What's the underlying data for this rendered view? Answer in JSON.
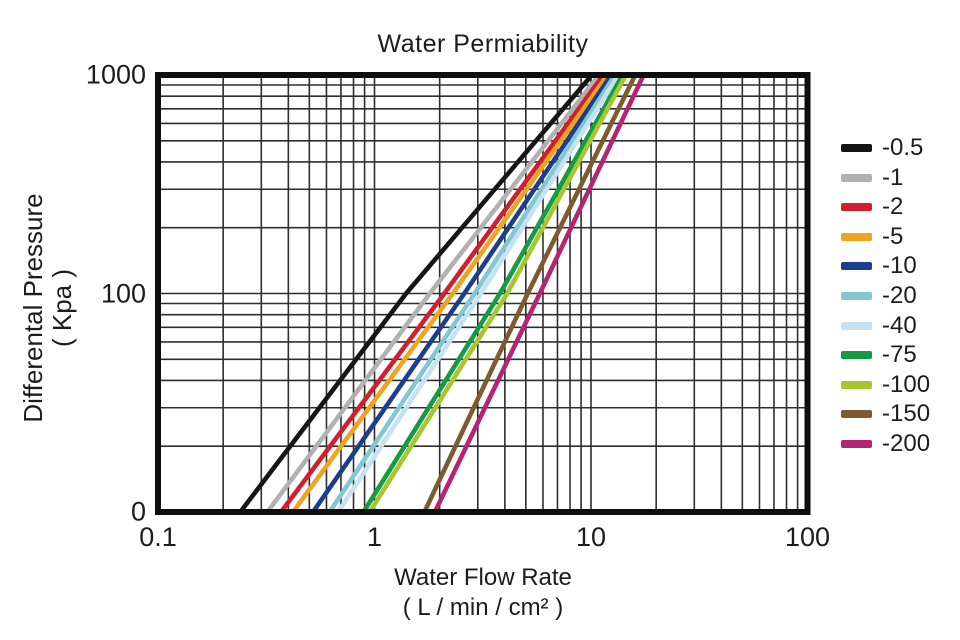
{
  "chart_data": {
    "type": "line",
    "title": "Water Permiability",
    "xlabel": "Water Flow Rate",
    "xlabel_units": "( L / min / cm² )",
    "ylabel": "Differental Pressure",
    "ylabel_units": "( Kpa )",
    "x_scale": "log",
    "y_scale": "log",
    "xlim": [
      0.1,
      100
    ],
    "ylim": [
      10,
      1000
    ],
    "grid": "log minor grid on, both axes",
    "legend_position": "right",
    "x_ticks": [
      {
        "value": 0.1,
        "label": "0.1"
      },
      {
        "value": 1,
        "label": "1"
      },
      {
        "value": 10,
        "label": "10"
      },
      {
        "value": 100,
        "label": "100"
      }
    ],
    "y_ticks": [
      {
        "value": 1000,
        "label": "1000"
      },
      {
        "value": 100,
        "label": "100"
      },
      {
        "value": 10,
        "label": "0"
      }
    ],
    "series_note": "points are [water_flow_rate, differential_pressure]; bottom axis row labeled 0",
    "series": [
      {
        "name": "-0.5",
        "color": "#151515",
        "points": [
          [
            0.24,
            10
          ],
          [
            1.4,
            100
          ],
          [
            10.1,
            1000
          ]
        ]
      },
      {
        "name": "-1",
        "color": "#b1b1b1",
        "points": [
          [
            0.32,
            10
          ],
          [
            1.8,
            100
          ],
          [
            10.9,
            1000
          ]
        ]
      },
      {
        "name": "-2",
        "color": "#d21f2e",
        "points": [
          [
            0.37,
            10
          ],
          [
            2.1,
            100
          ],
          [
            11.4,
            1000
          ]
        ]
      },
      {
        "name": "-5",
        "color": "#efa41d",
        "points": [
          [
            0.42,
            10
          ],
          [
            2.3,
            100
          ],
          [
            11.9,
            1000
          ]
        ]
      },
      {
        "name": "-10",
        "color": "#1c3e8d",
        "points": [
          [
            0.52,
            10
          ],
          [
            2.6,
            100
          ],
          [
            12.4,
            1000
          ]
        ]
      },
      {
        "name": "-20",
        "color": "#82c7d4",
        "points": [
          [
            0.62,
            10
          ],
          [
            2.9,
            100
          ],
          [
            12.9,
            1000
          ]
        ]
      },
      {
        "name": "-40",
        "color": "#c6e2f2",
        "points": [
          [
            0.68,
            10
          ],
          [
            3.1,
            100
          ],
          [
            13.4,
            1000
          ]
        ]
      },
      {
        "name": "-75",
        "color": "#169a44",
        "points": [
          [
            0.89,
            10
          ],
          [
            3.8,
            100
          ],
          [
            14.0,
            1000
          ]
        ]
      },
      {
        "name": "-100",
        "color": "#a3c72c",
        "points": [
          [
            0.95,
            10
          ],
          [
            4.1,
            100
          ],
          [
            14.5,
            1000
          ]
        ]
      },
      {
        "name": "-150",
        "color": "#7d5b2e",
        "points": [
          [
            1.7,
            10
          ],
          [
            5.1,
            100
          ],
          [
            16.0,
            1000
          ]
        ]
      },
      {
        "name": "-200",
        "color": "#b32573",
        "points": [
          [
            1.9,
            10
          ],
          [
            5.8,
            100
          ],
          [
            17.5,
            1000
          ]
        ]
      }
    ]
  },
  "style": {
    "grid_color": "#2e2e2e",
    "frame_color": "#0e0e0e",
    "text_color": "#1c1c1e"
  }
}
